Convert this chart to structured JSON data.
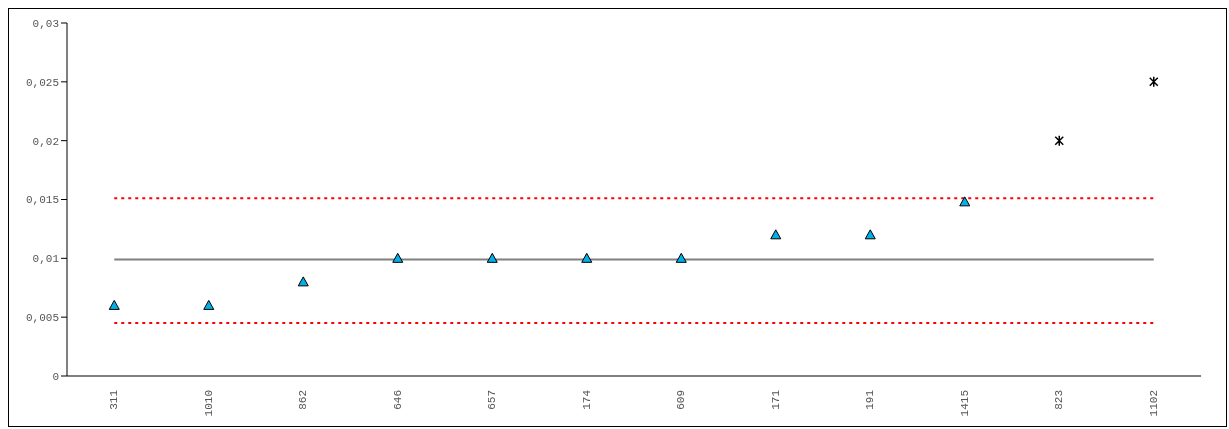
{
  "chart_data": {
    "type": "scatter",
    "categories": [
      "311",
      "1010",
      "862",
      "646",
      "657",
      "174",
      "609",
      "171",
      "191",
      "1415",
      "823",
      "1102"
    ],
    "series": [
      {
        "color": "#00b0e8",
        "marker": "triangle",
        "values": [
          0.006,
          0.006,
          0.008,
          0.01,
          0.01,
          0.01,
          0.01,
          0.012,
          0.012,
          0.0148,
          null,
          null
        ]
      },
      {
        "color": "#000000",
        "marker": "cross",
        "values": [
          null,
          null,
          null,
          null,
          null,
          null,
          null,
          null,
          null,
          null,
          0.02,
          0.025
        ]
      }
    ],
    "ylim": [
      0,
      0.03
    ],
    "yticks": [
      0,
      {
        "value": 0.005,
        "label": "0,005"
      },
      {
        "value": 0.01,
        "label": "0,01"
      },
      {
        "value": 0.015,
        "label": "0,015"
      },
      {
        "value": 0.02,
        "label": "0,02"
      },
      {
        "value": 0.025,
        "label": "0,025"
      },
      {
        "value": 0.03,
        "label": "0,03"
      }
    ],
    "ref_lines": [
      {
        "axis": "y",
        "value": 0.0099,
        "color": "#808080",
        "line_style": "solid"
      },
      {
        "axis": "y",
        "value": 0.0151,
        "color": "#ff0000",
        "line_style": "dotted"
      },
      {
        "axis": "y",
        "value": 0.0045,
        "color": "#ff0000",
        "line_style": "dotted"
      }
    ],
    "grid": false,
    "legend": false
  }
}
